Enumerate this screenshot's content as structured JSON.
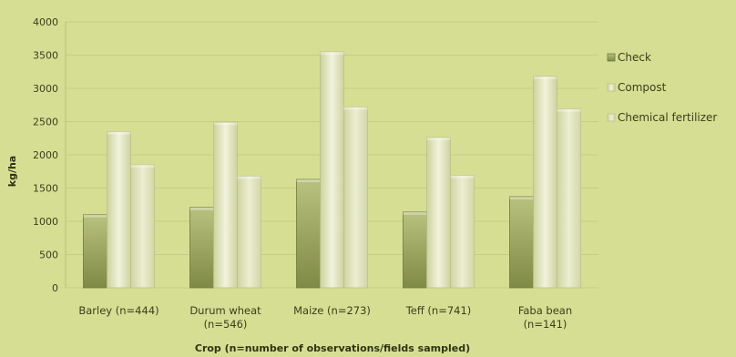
{
  "chart_data": {
    "type": "bar",
    "title": "",
    "xlabel": "Crop (n=number of observations/fields sampled)",
    "ylabel": "kg/ha",
    "ylim": [
      0,
      4000
    ],
    "yticks": [
      "0",
      "500",
      "1000",
      "1500",
      "2000",
      "2500",
      "3000",
      "3500",
      "4000"
    ],
    "categories": [
      [
        "Barley (n=444)"
      ],
      [
        "Durum wheat",
        "(n=546)"
      ],
      [
        "Maize (n=273)"
      ],
      [
        "Teff (n=741)"
      ],
      [
        "Faba bean",
        "(n=141)"
      ]
    ],
    "series": [
      {
        "name": "Check",
        "values": [
          1100,
          1210,
          1630,
          1140,
          1370
        ]
      },
      {
        "name": "Compost",
        "values": [
          2350,
          2490,
          3550,
          2260,
          3180
        ]
      },
      {
        "name": "Chemical fertilizer",
        "values": [
          1850,
          1680,
          2720,
          1690,
          2690
        ]
      }
    ],
    "grid": true,
    "legend": "right"
  },
  "colors": {
    "check": "#8f9a55",
    "compost": "#e8ebc6",
    "chemical": "#dfe3b3",
    "grid": "#c6cd86"
  }
}
